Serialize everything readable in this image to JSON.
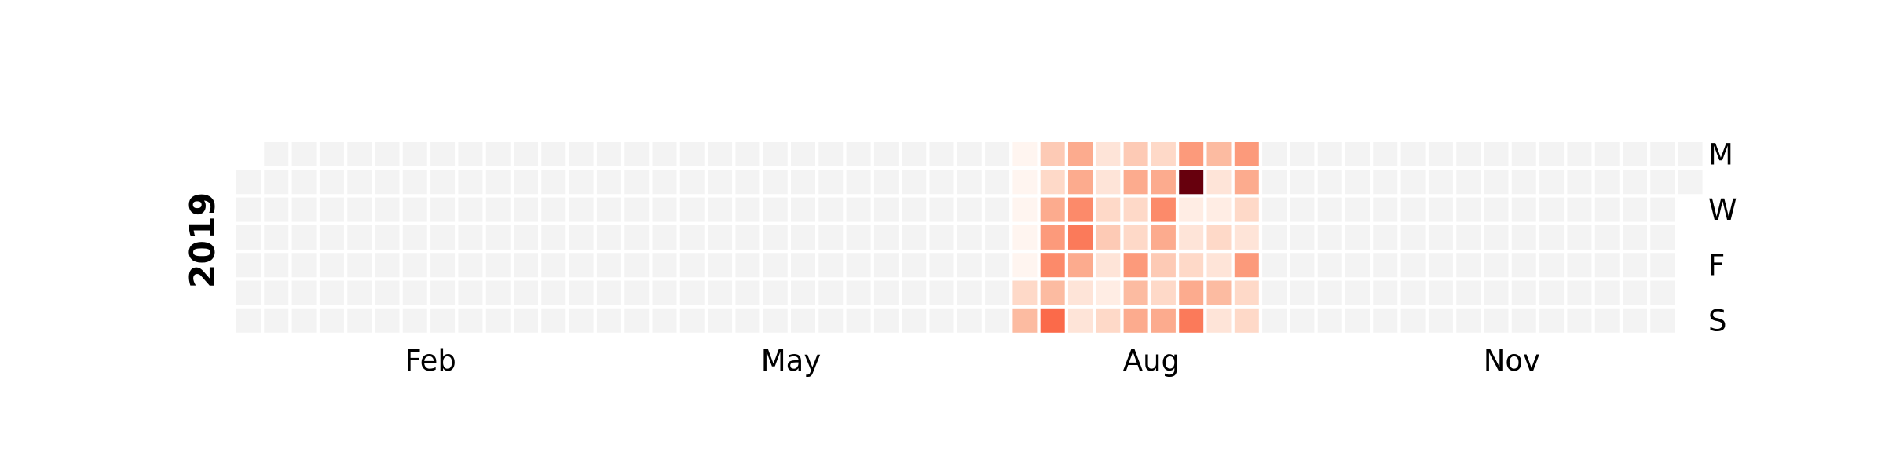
{
  "chart_data": {
    "type": "heatmap",
    "subtype": "calendar",
    "year_label": "2019",
    "start_date": "2019-01-01",
    "end_date": "2019-12-31",
    "colormap": "Reds",
    "empty_color": "#f3f3f3",
    "vmin": 0,
    "vmax": 10,
    "row_labels": [
      "M",
      "",
      "W",
      "",
      "F",
      "",
      "S"
    ],
    "month_labels": [
      "Feb",
      "May",
      "Aug",
      "Nov"
    ],
    "active_week_start": "2019-07-15",
    "weekly_values": [
      [
        0,
        0,
        0,
        0,
        0,
        1.5,
        2.5
      ],
      [
        2,
        1.5,
        3,
        3.5,
        4,
        2.5,
        5
      ],
      [
        3,
        3,
        4,
        4.5,
        3,
        1,
        1
      ],
      [
        1,
        1,
        1.5,
        2,
        1,
        0.5,
        1.5
      ],
      [
        2,
        3,
        1.5,
        1.5,
        3.5,
        2.5,
        3
      ],
      [
        1.5,
        3,
        4,
        3,
        2,
        1.5,
        3
      ],
      [
        3.5,
        10,
        0.5,
        1,
        1.5,
        3,
        4.5
      ],
      [
        2.5,
        1,
        0.5,
        1.5,
        1,
        2.5,
        1
      ],
      [
        3.5,
        3,
        1.5,
        1,
        3.5,
        1.5,
        1.5
      ]
    ]
  }
}
